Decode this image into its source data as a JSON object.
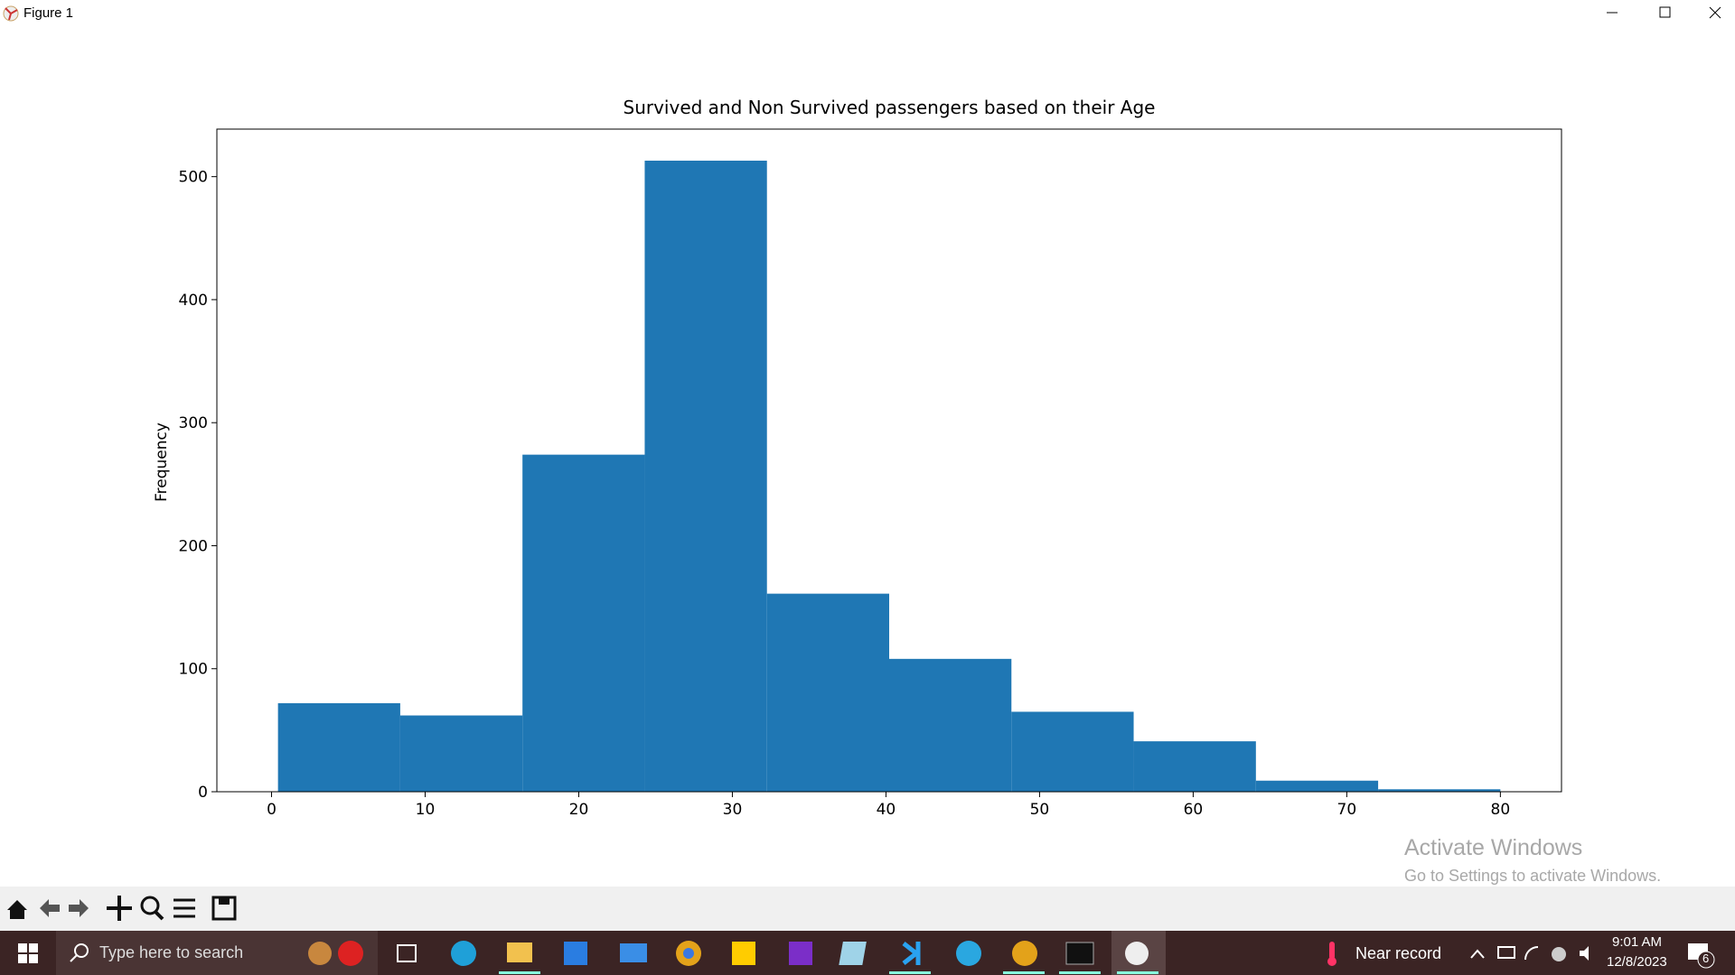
{
  "window": {
    "title": "Figure 1"
  },
  "chart_data": {
    "type": "histogram",
    "title": "Survived and Non Survived passengers based on their Age",
    "ylabel": "Frequency",
    "bins": [
      0.42,
      8.378,
      16.336,
      24.294,
      32.252,
      40.21,
      48.168,
      56.126,
      64.084,
      72.042,
      80
    ],
    "values": [
      72,
      62,
      274,
      513,
      161,
      108,
      65,
      41,
      9,
      2
    ],
    "color": "#1f77b4",
    "xlim": [
      -3.559,
      83.979
    ],
    "xticks": [
      0,
      10,
      20,
      30,
      40,
      50,
      60,
      70,
      80
    ],
    "ylim": [
      0,
      538.65
    ],
    "yticks": [
      0,
      100,
      200,
      300,
      400,
      500
    ],
    "grid": false
  },
  "watermark": {
    "line1": "Activate Windows",
    "line2": "Go to Settings to activate Windows."
  },
  "taskbar": {
    "search": "Type here to search",
    "weather": "Near record",
    "time": "9:01 AM",
    "date": "12/8/2023",
    "notifications": "6"
  }
}
